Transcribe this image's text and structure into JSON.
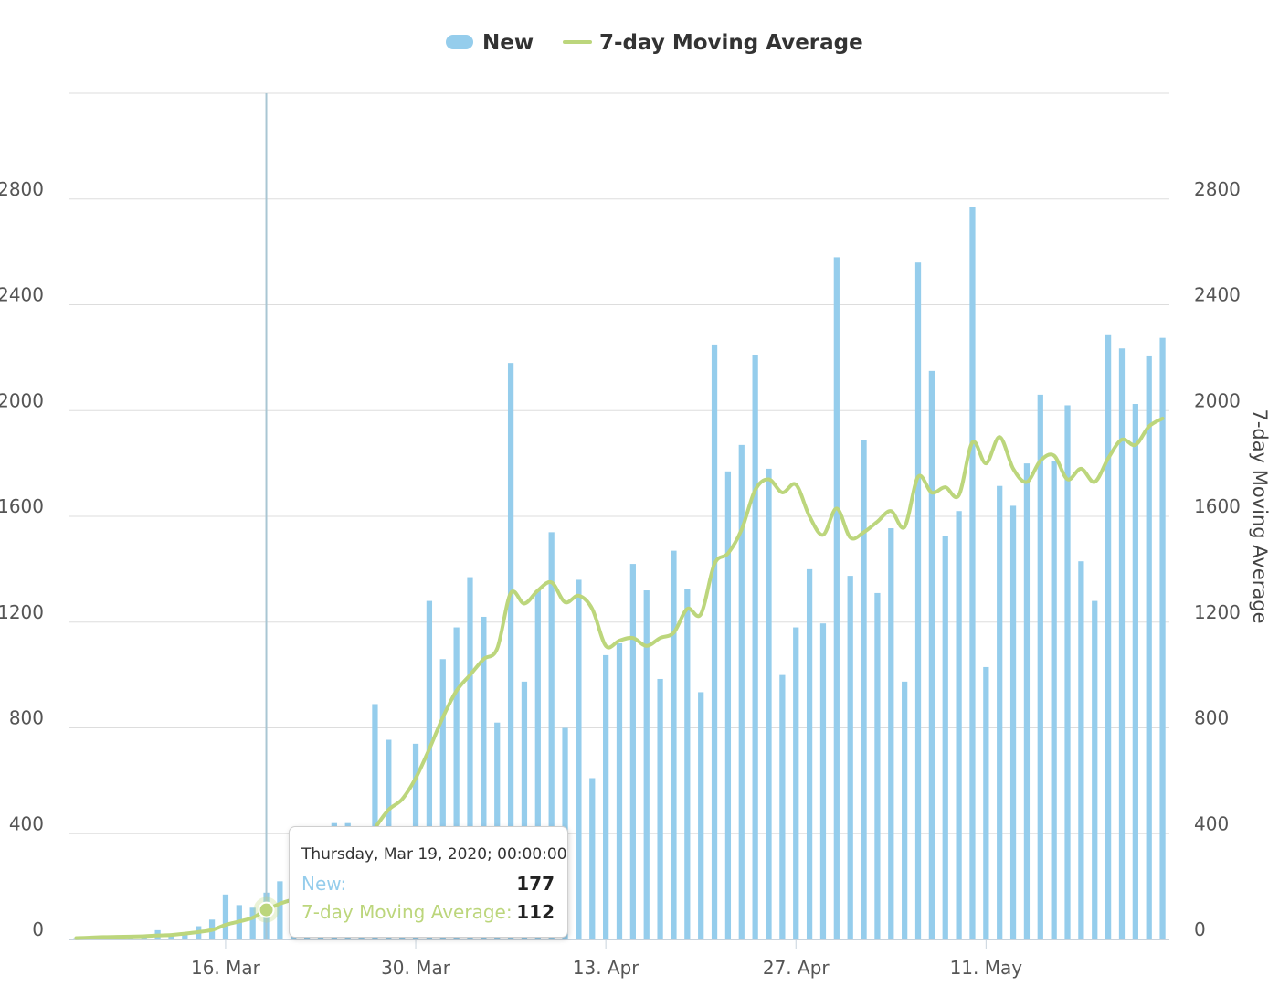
{
  "colors": {
    "bar": "#95cdec",
    "line": "#bcd67c",
    "grid": "#dddddd",
    "crosshair": "#a9c6d3"
  },
  "tooltip": {
    "date": "Thursday, Mar 19, 2020; 00:00:00",
    "rows": [
      {
        "label": "New:",
        "value": "177",
        "color": "#95cdec"
      },
      {
        "label": "7-day Moving Average:",
        "value": "112",
        "color": "#bcd67c"
      }
    ]
  },
  "chart_data": {
    "type": "bar",
    "start_date": "2020-03-05",
    "legend": [
      "New",
      "7-day Moving Average"
    ],
    "legend_position": "top-center",
    "grid": true,
    "crosshair_date": "2020-03-19",
    "x_ticks": [
      {
        "label": "16. Mar",
        "date": "2020-03-16"
      },
      {
        "label": "30. Mar",
        "date": "2020-03-30"
      },
      {
        "label": "13. Apr",
        "date": "2020-04-13"
      },
      {
        "label": "27. Apr",
        "date": "2020-04-27"
      },
      {
        "label": "11. May",
        "date": "2020-05-11"
      }
    ],
    "y_ticks": [
      "0",
      "400",
      "800",
      "1200",
      "1600",
      "2000",
      "2400",
      "2800"
    ],
    "y_right_label": "7-day Moving Average",
    "ylim": [
      0,
      3200
    ],
    "series": [
      {
        "name": "New",
        "type": "bar",
        "values": [
          5,
          8,
          12,
          10,
          15,
          15,
          35,
          20,
          25,
          50,
          75,
          170,
          130,
          120,
          177,
          220,
          180,
          250,
          330,
          440,
          440,
          300,
          890,
          755,
          380,
          740,
          1280,
          1060,
          1180,
          1370,
          1220,
          820,
          2180,
          975,
          1320,
          1540,
          800,
          1360,
          610,
          1075,
          1120,
          1420,
          1320,
          985,
          1470,
          1325,
          935,
          2250,
          1770,
          1870,
          2210,
          1780,
          1000,
          1180,
          1400,
          1195,
          2580,
          1375,
          1890,
          1310,
          1555,
          975,
          2560,
          2150,
          1525,
          1620,
          2770,
          1030,
          1715,
          1640,
          1800,
          2060,
          1810,
          2020,
          1430,
          1280,
          2285,
          2235,
          2025,
          2205,
          2275
        ]
      },
      {
        "name": "7-day Moving Average",
        "type": "line",
        "values": [
          5,
          7,
          9,
          10,
          11,
          12,
          15,
          17,
          22,
          28,
          36,
          55,
          68,
          82,
          112,
          135,
          152,
          170,
          200,
          245,
          300,
          330,
          420,
          490,
          530,
          610,
          720,
          840,
          940,
          1000,
          1060,
          1100,
          1310,
          1270,
          1320,
          1350,
          1275,
          1300,
          1250,
          1110,
          1130,
          1140,
          1110,
          1140,
          1160,
          1250,
          1230,
          1420,
          1460,
          1550,
          1700,
          1740,
          1690,
          1720,
          1600,
          1530,
          1630,
          1520,
          1540,
          1580,
          1620,
          1560,
          1750,
          1690,
          1710,
          1680,
          1880,
          1800,
          1900,
          1780,
          1730,
          1810,
          1830,
          1740,
          1780,
          1730,
          1820,
          1890,
          1870,
          1940,
          1970
        ]
      }
    ]
  }
}
